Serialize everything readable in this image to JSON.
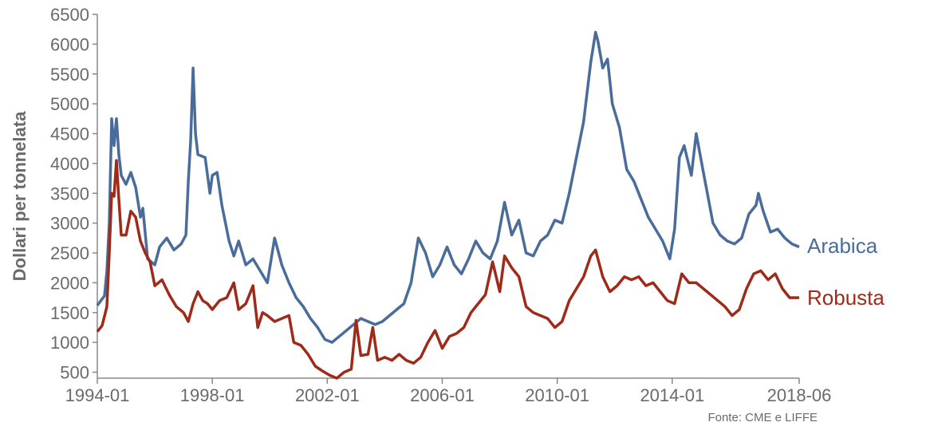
{
  "chart_data": {
    "type": "line",
    "ylabel": "Dollari per tonnelata",
    "source": "Fonte: CME e LIFFE",
    "xlim": [
      "1994-01",
      "2018-06"
    ],
    "ylim": [
      400,
      6500
    ],
    "x_ticks": [
      "1994-01",
      "1998-01",
      "2002-01",
      "2006-01",
      "2010-01",
      "2014-01",
      "2018-06"
    ],
    "y_ticks": [
      500,
      1000,
      1500,
      2000,
      2500,
      3000,
      3500,
      4000,
      4500,
      5000,
      5500,
      6000,
      6500
    ],
    "series": [
      {
        "name": "Arabica",
        "color": "#4a6c9b",
        "points": [
          [
            "1994-01",
            1620
          ],
          [
            "1994-04",
            1780
          ],
          [
            "1994-05",
            2200
          ],
          [
            "1994-06",
            3000
          ],
          [
            "1994-07",
            4750
          ],
          [
            "1994-08",
            4300
          ],
          [
            "1994-09",
            4750
          ],
          [
            "1994-10",
            4150
          ],
          [
            "1994-11",
            3800
          ],
          [
            "1995-01",
            3650
          ],
          [
            "1995-03",
            3850
          ],
          [
            "1995-05",
            3600
          ],
          [
            "1995-07",
            3100
          ],
          [
            "1995-08",
            3250
          ],
          [
            "1995-10",
            2400
          ],
          [
            "1996-01",
            2300
          ],
          [
            "1996-03",
            2600
          ],
          [
            "1996-06",
            2750
          ],
          [
            "1996-09",
            2550
          ],
          [
            "1996-12",
            2650
          ],
          [
            "1997-02",
            2800
          ],
          [
            "1997-03",
            3700
          ],
          [
            "1997-04",
            4400
          ],
          [
            "1997-05",
            5600
          ],
          [
            "1997-06",
            4500
          ],
          [
            "1997-07",
            4150
          ],
          [
            "1997-10",
            4100
          ],
          [
            "1997-12",
            3500
          ],
          [
            "1998-01",
            3800
          ],
          [
            "1998-03",
            3850
          ],
          [
            "1998-05",
            3300
          ],
          [
            "1998-08",
            2700
          ],
          [
            "1998-10",
            2450
          ],
          [
            "1998-12",
            2700
          ],
          [
            "1999-03",
            2300
          ],
          [
            "1999-06",
            2400
          ],
          [
            "1999-09",
            2200
          ],
          [
            "1999-12",
            2000
          ],
          [
            "2000-03",
            2750
          ],
          [
            "2000-06",
            2300
          ],
          [
            "2000-09",
            2000
          ],
          [
            "2000-12",
            1750
          ],
          [
            "2001-03",
            1600
          ],
          [
            "2001-06",
            1400
          ],
          [
            "2001-09",
            1250
          ],
          [
            "2001-12",
            1050
          ],
          [
            "2002-03",
            1000
          ],
          [
            "2002-06",
            1100
          ],
          [
            "2002-09",
            1200
          ],
          [
            "2002-12",
            1300
          ],
          [
            "2003-03",
            1400
          ],
          [
            "2003-06",
            1350
          ],
          [
            "2003-09",
            1300
          ],
          [
            "2003-12",
            1350
          ],
          [
            "2004-03",
            1450
          ],
          [
            "2004-06",
            1550
          ],
          [
            "2004-09",
            1650
          ],
          [
            "2004-12",
            2000
          ],
          [
            "2005-03",
            2750
          ],
          [
            "2005-06",
            2500
          ],
          [
            "2005-09",
            2100
          ],
          [
            "2005-12",
            2300
          ],
          [
            "2006-03",
            2600
          ],
          [
            "2006-06",
            2300
          ],
          [
            "2006-09",
            2150
          ],
          [
            "2006-12",
            2400
          ],
          [
            "2007-03",
            2700
          ],
          [
            "2007-06",
            2500
          ],
          [
            "2007-09",
            2400
          ],
          [
            "2007-12",
            2700
          ],
          [
            "2008-03",
            3350
          ],
          [
            "2008-06",
            2800
          ],
          [
            "2008-09",
            3050
          ],
          [
            "2008-12",
            2500
          ],
          [
            "2009-03",
            2450
          ],
          [
            "2009-06",
            2700
          ],
          [
            "2009-09",
            2800
          ],
          [
            "2009-12",
            3050
          ],
          [
            "2010-03",
            3000
          ],
          [
            "2010-06",
            3500
          ],
          [
            "2010-09",
            4100
          ],
          [
            "2010-12",
            4700
          ],
          [
            "2011-03",
            5700
          ],
          [
            "2011-05",
            6200
          ],
          [
            "2011-06",
            6050
          ],
          [
            "2011-08",
            5600
          ],
          [
            "2011-10",
            5750
          ],
          [
            "2011-12",
            5000
          ],
          [
            "2012-03",
            4600
          ],
          [
            "2012-06",
            3900
          ],
          [
            "2012-09",
            3700
          ],
          [
            "2012-12",
            3400
          ],
          [
            "2013-03",
            3100
          ],
          [
            "2013-06",
            2900
          ],
          [
            "2013-09",
            2700
          ],
          [
            "2013-12",
            2400
          ],
          [
            "2014-02",
            2900
          ],
          [
            "2014-04",
            4100
          ],
          [
            "2014-06",
            4300
          ],
          [
            "2014-09",
            3800
          ],
          [
            "2014-11",
            4500
          ],
          [
            "2015-02",
            3850
          ],
          [
            "2015-06",
            3000
          ],
          [
            "2015-09",
            2800
          ],
          [
            "2015-12",
            2700
          ],
          [
            "2016-03",
            2650
          ],
          [
            "2016-06",
            2750
          ],
          [
            "2016-09",
            3150
          ],
          [
            "2016-12",
            3300
          ],
          [
            "2017-01",
            3500
          ],
          [
            "2017-03",
            3200
          ],
          [
            "2017-06",
            2850
          ],
          [
            "2017-09",
            2900
          ],
          [
            "2017-12",
            2750
          ],
          [
            "2018-03",
            2650
          ],
          [
            "2018-06",
            2600
          ]
        ]
      },
      {
        "name": "Robusta",
        "color": "#9e2a1a",
        "points": [
          [
            "1994-01",
            1180
          ],
          [
            "1994-03",
            1280
          ],
          [
            "1994-05",
            1600
          ],
          [
            "1994-06",
            2500
          ],
          [
            "1994-07",
            3500
          ],
          [
            "1994-08",
            3450
          ],
          [
            "1994-09",
            4050
          ],
          [
            "1994-10",
            3400
          ],
          [
            "1994-11",
            2800
          ],
          [
            "1995-01",
            2800
          ],
          [
            "1995-03",
            3200
          ],
          [
            "1995-05",
            3100
          ],
          [
            "1995-07",
            2700
          ],
          [
            "1995-09",
            2500
          ],
          [
            "1995-11",
            2350
          ],
          [
            "1996-01",
            1950
          ],
          [
            "1996-04",
            2050
          ],
          [
            "1996-07",
            1800
          ],
          [
            "1996-10",
            1600
          ],
          [
            "1997-01",
            1500
          ],
          [
            "1997-03",
            1350
          ],
          [
            "1997-05",
            1650
          ],
          [
            "1997-07",
            1850
          ],
          [
            "1997-09",
            1700
          ],
          [
            "1997-11",
            1650
          ],
          [
            "1998-01",
            1550
          ],
          [
            "1998-04",
            1700
          ],
          [
            "1998-07",
            1750
          ],
          [
            "1998-10",
            2000
          ],
          [
            "1998-12",
            1550
          ],
          [
            "1999-03",
            1650
          ],
          [
            "1999-06",
            1950
          ],
          [
            "1999-08",
            1250
          ],
          [
            "1999-10",
            1500
          ],
          [
            "1999-12",
            1450
          ],
          [
            "2000-03",
            1350
          ],
          [
            "2000-06",
            1400
          ],
          [
            "2000-09",
            1450
          ],
          [
            "2000-11",
            1000
          ],
          [
            "2001-02",
            950
          ],
          [
            "2001-05",
            800
          ],
          [
            "2001-08",
            600
          ],
          [
            "2001-11",
            520
          ],
          [
            "2002-02",
            450
          ],
          [
            "2002-05",
            400
          ],
          [
            "2002-08",
            500
          ],
          [
            "2002-11",
            550
          ],
          [
            "2003-01",
            1370
          ],
          [
            "2003-03",
            780
          ],
          [
            "2003-06",
            800
          ],
          [
            "2003-08",
            1250
          ],
          [
            "2003-10",
            700
          ],
          [
            "2004-01",
            750
          ],
          [
            "2004-04",
            700
          ],
          [
            "2004-07",
            800
          ],
          [
            "2004-10",
            700
          ],
          [
            "2005-01",
            650
          ],
          [
            "2005-04",
            750
          ],
          [
            "2005-07",
            1000
          ],
          [
            "2005-10",
            1200
          ],
          [
            "2006-01",
            900
          ],
          [
            "2006-04",
            1100
          ],
          [
            "2006-07",
            1150
          ],
          [
            "2006-10",
            1250
          ],
          [
            "2007-01",
            1500
          ],
          [
            "2007-04",
            1650
          ],
          [
            "2007-07",
            1800
          ],
          [
            "2007-10",
            2350
          ],
          [
            "2008-01",
            1850
          ],
          [
            "2008-03",
            2450
          ],
          [
            "2008-06",
            2250
          ],
          [
            "2008-09",
            2100
          ],
          [
            "2008-12",
            1600
          ],
          [
            "2009-03",
            1500
          ],
          [
            "2009-06",
            1450
          ],
          [
            "2009-09",
            1400
          ],
          [
            "2009-12",
            1250
          ],
          [
            "2010-03",
            1350
          ],
          [
            "2010-06",
            1700
          ],
          [
            "2010-09",
            1900
          ],
          [
            "2010-12",
            2100
          ],
          [
            "2011-03",
            2450
          ],
          [
            "2011-05",
            2550
          ],
          [
            "2011-08",
            2100
          ],
          [
            "2011-11",
            1850
          ],
          [
            "2012-02",
            1950
          ],
          [
            "2012-05",
            2100
          ],
          [
            "2012-08",
            2050
          ],
          [
            "2012-11",
            2100
          ],
          [
            "2013-02",
            1950
          ],
          [
            "2013-05",
            2000
          ],
          [
            "2013-08",
            1850
          ],
          [
            "2013-11",
            1700
          ],
          [
            "2014-02",
            1650
          ],
          [
            "2014-05",
            2150
          ],
          [
            "2014-08",
            2000
          ],
          [
            "2014-11",
            2000
          ],
          [
            "2015-02",
            1900
          ],
          [
            "2015-05",
            1800
          ],
          [
            "2015-08",
            1700
          ],
          [
            "2015-11",
            1600
          ],
          [
            "2016-02",
            1450
          ],
          [
            "2016-05",
            1550
          ],
          [
            "2016-08",
            1900
          ],
          [
            "2016-11",
            2150
          ],
          [
            "2017-02",
            2200
          ],
          [
            "2017-05",
            2050
          ],
          [
            "2017-08",
            2150
          ],
          [
            "2017-11",
            1900
          ],
          [
            "2018-02",
            1750
          ],
          [
            "2018-06",
            1750
          ]
        ]
      }
    ]
  }
}
